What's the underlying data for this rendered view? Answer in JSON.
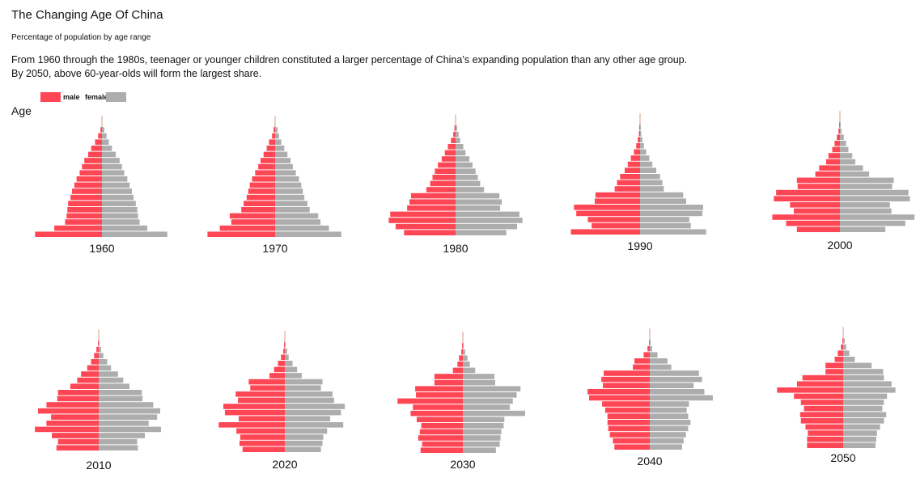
{
  "title": "The Changing Age Of  China",
  "subtitle": "Percentage of population by age range",
  "description": [
    "From 1960 through the 1980s, teenager or younger children constituted a larger percentage of China’s expanding population than any other age group.",
    "By 2050, above 60-year-olds will form the largest share."
  ],
  "legend": {
    "male": "male",
    "female": "female"
  },
  "y_axis_label": "Age",
  "colors": {
    "male": "#ff4655",
    "female": "#adadad",
    "accent_line": "#c9826b"
  },
  "chart_data": [
    {
      "type": "bar",
      "orientation": "horizontal-pyramid",
      "year": "1960",
      "male": [
        0.2,
        0.5,
        0.9,
        1.4,
        1.8,
        2.3,
        2.6,
        2.9,
        3.3,
        3.6,
        3.9,
        4.1,
        4.4,
        4.5,
        4.6,
        4.8,
        6.2,
        8.7
      ],
      "female": [
        0.3,
        0.6,
        0.9,
        1.3,
        1.8,
        2.3,
        2.6,
        2.9,
        3.3,
        3.6,
        3.9,
        4.1,
        4.4,
        4.6,
        4.7,
        4.9,
        5.9,
        8.5
      ]
    },
    {
      "type": "bar",
      "orientation": "horizontal-pyramid",
      "year": "1970",
      "male": [
        0.2,
        0.4,
        0.8,
        1.1,
        1.5,
        1.9,
        2.2,
        2.6,
        3.0,
        3.3,
        3.5,
        3.7,
        4.1,
        4.4,
        5.9,
        5.7,
        7.2,
        8.8
      ],
      "female": [
        0.3,
        0.5,
        0.8,
        1.2,
        1.6,
        2.0,
        2.3,
        2.7,
        3.1,
        3.4,
        3.6,
        3.8,
        4.2,
        4.5,
        5.6,
        5.9,
        7.0,
        8.6
      ]
    },
    {
      "type": "bar",
      "orientation": "horizontal-pyramid",
      "year": "1980",
      "male": [
        0.15,
        0.3,
        0.6,
        1.0,
        1.4,
        1.8,
        2.3,
        2.7,
        3.0,
        3.3,
        3.8,
        5.8,
        6.0,
        6.3,
        8.5,
        8.7,
        7.8,
        6.7
      ],
      "female": [
        0.2,
        0.4,
        0.6,
        1.0,
        1.3,
        1.8,
        2.2,
        2.6,
        2.9,
        3.2,
        3.7,
        5.7,
        6.0,
        5.8,
        8.3,
        8.7,
        8.0,
        6.6
      ]
    },
    {
      "type": "bar",
      "orientation": "horizontal-pyramid",
      "year": "1990",
      "male": [
        0.1,
        0.15,
        0.3,
        0.5,
        0.8,
        1.2,
        1.6,
        2.0,
        2.6,
        3.0,
        3.3,
        5.8,
        5.9,
        8.6,
        8.3,
        6.8,
        6.3,
        9.0
      ],
      "female": [
        0.1,
        0.15,
        0.3,
        0.5,
        0.8,
        1.2,
        1.6,
        2.1,
        2.6,
        2.9,
        3.1,
        5.6,
        6.0,
        8.2,
        8.1,
        6.4,
        6.6,
        8.6
      ]
    },
    {
      "type": "bar",
      "orientation": "horizontal-pyramid",
      "year": "2000",
      "male": [
        0.1,
        0.2,
        0.4,
        0.7,
        1.0,
        1.5,
        1.8,
        2.7,
        3.2,
        5.6,
        5.5,
        8.3,
        8.6,
        6.5,
        6.0,
        8.8,
        7.0,
        5.6
      ],
      "female": [
        0.1,
        0.2,
        0.5,
        0.8,
        1.1,
        1.6,
        2.0,
        3.0,
        3.8,
        7.0,
        6.8,
        8.9,
        9.1,
        6.5,
        6.7,
        9.7,
        8.5,
        5.9
      ]
    },
    {
      "type": "bar",
      "orientation": "horizontal-pyramid",
      "year": "2010",
      "male": [
        0.1,
        0.3,
        0.6,
        1.0,
        1.5,
        2.3,
        2.8,
        3.7,
        5.3,
        5.4,
        6.8,
        7.9,
        6.2,
        6.8,
        8.3,
        6.1,
        5.3,
        5.5
      ],
      "female": [
        0.1,
        0.3,
        0.6,
        1.1,
        1.6,
        2.5,
        3.2,
        4.0,
        5.6,
        5.7,
        7.1,
        8.0,
        7.6,
        6.5,
        8.1,
        6.0,
        5.0,
        5.1
      ]
    },
    {
      "type": "bar",
      "orientation": "horizontal-pyramid",
      "year": "2020",
      "male": [
        0.1,
        0.2,
        0.5,
        0.9,
        1.4,
        2.0,
        4.7,
        4.5,
        6.4,
        6.1,
        8.0,
        7.8,
        6.0,
        8.6,
        6.3,
        5.8,
        5.9,
        5.5
      ],
      "female": [
        0.1,
        0.3,
        0.5,
        1.0,
        1.6,
        2.2,
        4.9,
        4.7,
        6.2,
        6.4,
        7.8,
        7.3,
        5.9,
        7.6,
        5.5,
        5.0,
        4.9,
        4.7
      ]
    },
    {
      "type": "bar",
      "orientation": "horizontal-pyramid",
      "year": "2030",
      "male": [
        0.1,
        0.2,
        0.5,
        0.7,
        1.3,
        3.7,
        3.7,
        6.2,
        6.1,
        8.5,
        6.5,
        6.8,
        6.0,
        5.4,
        5.6,
        5.8,
        5.3,
        5.5
      ],
      "female": [
        0.1,
        0.3,
        0.6,
        0.9,
        1.6,
        4.1,
        4.2,
        7.5,
        7.0,
        6.5,
        6.1,
        8.1,
        5.4,
        5.3,
        5.0,
        4.9,
        4.8,
        4.3
      ]
    },
    {
      "type": "bar",
      "orientation": "horizontal-pyramid",
      "year": "2040",
      "male": [
        0.1,
        0.3,
        0.8,
        2.0,
        2.2,
        6.0,
        6.3,
        6.1,
        8.1,
        7.9,
        6.2,
        5.8,
        5.5,
        5.5,
        5.4,
        5.2,
        4.8,
        4.6
      ],
      "female": [
        0.1,
        0.3,
        1.0,
        2.3,
        2.8,
        6.4,
        6.8,
        5.7,
        7.1,
        8.2,
        5.1,
        4.8,
        5.0,
        5.3,
        5.0,
        4.7,
        4.4,
        4.2
      ]
    },
    {
      "type": "bar",
      "orientation": "horizontal-pyramid",
      "year": "2050",
      "male": [
        0.1,
        0.3,
        0.7,
        1.1,
        2.3,
        2.3,
        5.3,
        6.0,
        8.6,
        6.4,
        5.5,
        5.1,
        5.6,
        5.5,
        4.9,
        4.6,
        4.7,
        4.7
      ],
      "female": [
        0.2,
        0.4,
        0.8,
        1.5,
        3.7,
        5.2,
        5.3,
        6.3,
        6.8,
        5.7,
        5.3,
        5.1,
        5.6,
        5.3,
        4.8,
        4.4,
        4.3,
        4.2
      ]
    }
  ]
}
